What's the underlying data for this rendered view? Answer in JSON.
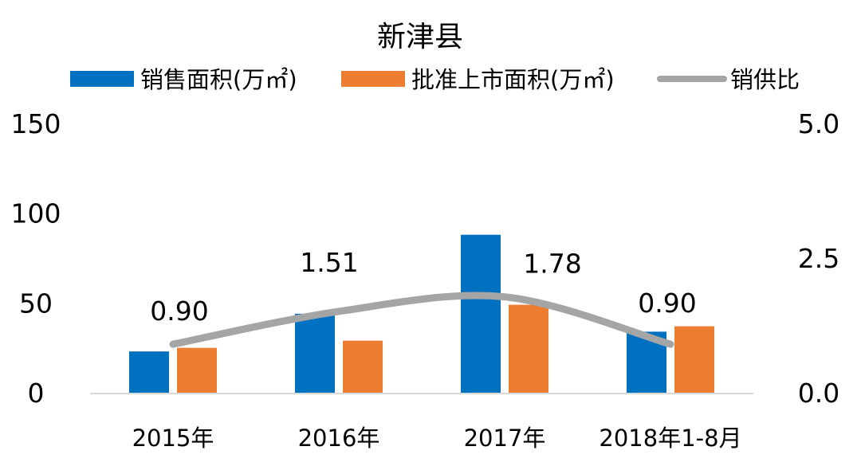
{
  "chart_data": {
    "type": "bar",
    "title": "新津县",
    "categories": [
      "2015年",
      "2016年",
      "2017年",
      "2018年1-8月"
    ],
    "series": [
      {
        "name": "销售面积(万㎡)",
        "kind": "bar",
        "axis": "left",
        "color": "#0070C0",
        "values": [
          23,
          44,
          88,
          34
        ]
      },
      {
        "name": "批准上市面积(万㎡)",
        "kind": "bar",
        "axis": "left",
        "color": "#ED7D31",
        "values": [
          25,
          29,
          49,
          37
        ]
      },
      {
        "name": "销供比",
        "kind": "line",
        "smooth": true,
        "axis": "right",
        "color": "#A5A5A5",
        "values": [
          0.9,
          1.51,
          1.78,
          0.9
        ],
        "labels": [
          "0.90",
          "1.51",
          "1.78",
          "0.90"
        ]
      }
    ],
    "y_left": {
      "range": [
        0,
        150
      ],
      "ticks": [
        "0",
        "50",
        "100",
        "150"
      ]
    },
    "y_right": {
      "range": [
        0,
        5
      ],
      "ticks": [
        "0.0",
        "2.5",
        "5.0"
      ]
    },
    "legend": "top",
    "grid": false
  }
}
